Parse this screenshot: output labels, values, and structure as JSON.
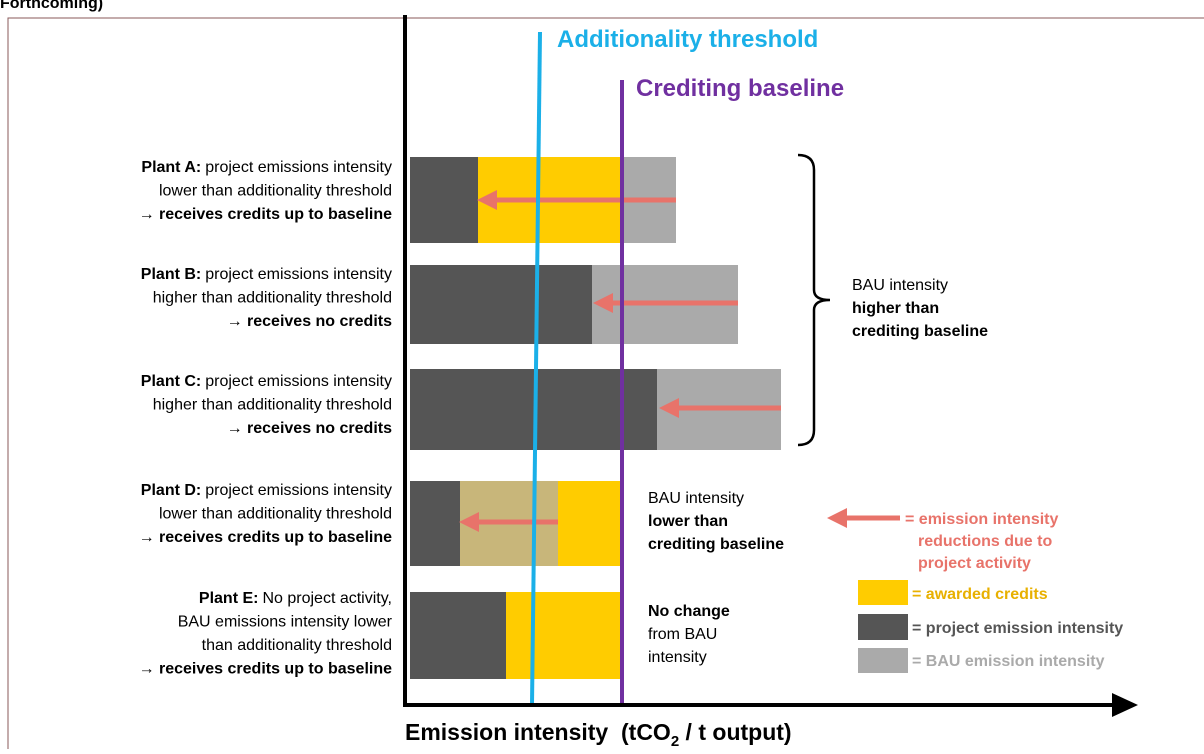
{
  "header": {
    "text": "Forthcoming)"
  },
  "thresholds": {
    "additionality": "Additionality threshold",
    "baseline": "Crediting baseline"
  },
  "plants": [
    {
      "name": "Plant A:",
      "lines": [
        "project emissions intensity",
        "lower than additionality threshold",
        "→ receives credits up to baseline"
      ]
    },
    {
      "name": "Plant B:",
      "lines": [
        "project emissions intensity",
        "higher than additionality threshold",
        "→ receives no credits"
      ]
    },
    {
      "name": "Plant C:",
      "lines": [
        "project emissions intensity",
        "higher than additionality threshold",
        "→ receives no credits"
      ]
    },
    {
      "name": "Plant D:",
      "lines": [
        "project emissions intensity",
        "lower than additionality threshold",
        "→ receives credits up to baseline"
      ]
    },
    {
      "name": "Plant E:",
      "lines": [
        "No project activity,",
        "BAU emissions intensity lower",
        "than additionality threshold",
        "→ receives credits up to baseline"
      ]
    }
  ],
  "notes": {
    "higher": [
      "BAU intensity",
      "higher than",
      "crediting baseline"
    ],
    "lower": [
      "BAU intensity",
      "lower than",
      "crediting baseline"
    ],
    "no_change": [
      "No change",
      "from BAU",
      "intensity"
    ]
  },
  "legend": {
    "reduction": [
      "= emission intensity",
      "reductions due to",
      "project activity"
    ],
    "credits": "= awarded credits",
    "project": "= project emission intensity",
    "bau": "= BAU emission intensity"
  },
  "axis": {
    "label": "Emission intensity  (tCO",
    "subscript": "2",
    "suffix": " / t output)"
  }
}
